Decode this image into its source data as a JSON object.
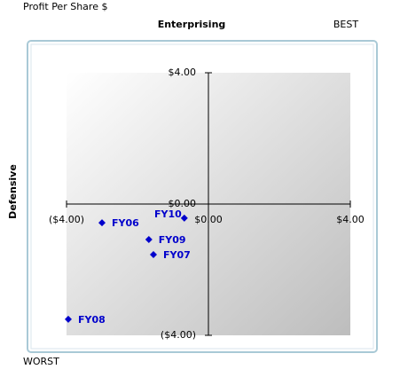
{
  "chart_data": {
    "type": "scatter",
    "title": "Profit Per Share $",
    "top_label": "Enterprising",
    "corner_top_right": "BEST",
    "corner_bottom_left": "WORST",
    "y_label": "Defensive",
    "color": "#0000cc",
    "series": [
      {
        "name": "FY06",
        "x": -3.0,
        "y": -0.57
      },
      {
        "name": "FY10",
        "x": -0.68,
        "y": -0.43
      },
      {
        "name": "FY09",
        "x": -1.68,
        "y": -1.08
      },
      {
        "name": "FY07",
        "x": -1.55,
        "y": -1.54
      },
      {
        "name": "FY08",
        "x": -3.95,
        "y": -3.51
      }
    ],
    "xlim": [
      -4,
      4
    ],
    "ylim": [
      -4,
      4
    ],
    "xticks": [
      {
        "value": -4,
        "label": "($4.00)"
      },
      {
        "value": 0,
        "label": "$0.00"
      },
      {
        "value": 4,
        "label": "$4.00"
      }
    ],
    "yticks": [
      {
        "value": -4,
        "label": "($4.00)"
      },
      {
        "value": 0,
        "label": "$0.00"
      },
      {
        "value": 4,
        "label": "$4.00"
      }
    ]
  }
}
